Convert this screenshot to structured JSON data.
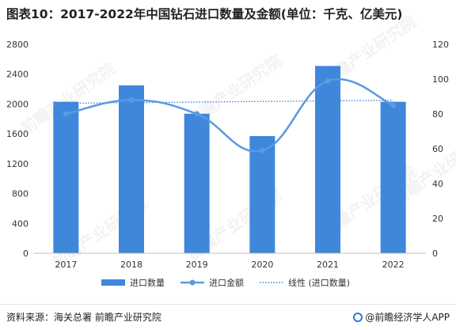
{
  "page": {
    "title": "图表10：2017-2022年中国钻石进口数量及金额(单位：千克、亿美元)",
    "source": "资料来源：海关总署 前瞻产业研究院",
    "brand": "@前瞻经济学人APP",
    "watermark": "前瞻产业研究院"
  },
  "colors": {
    "bar": "#3f87db",
    "line": "#5a9ae0",
    "trend": "#3f87db",
    "axis_text": "#333333"
  },
  "chart_data": {
    "type": "bar",
    "categories": [
      "2017",
      "2018",
      "2019",
      "2020",
      "2021",
      "2022"
    ],
    "series": [
      {
        "name": "进口数量",
        "type": "bar",
        "axis": "left",
        "values": [
          2030,
          2250,
          1870,
          1570,
          2510,
          2030
        ]
      },
      {
        "name": "进口金额",
        "type": "line",
        "axis": "right",
        "values": [
          80,
          88,
          80,
          59,
          99,
          85
        ]
      },
      {
        "name": "线性 (进口数量)",
        "type": "trendline",
        "axis": "left",
        "values": [
          2010,
          2018,
          2026,
          2034,
          2042,
          2050
        ]
      }
    ],
    "y_left": {
      "min": 0,
      "max": 2800,
      "ticks": [
        0,
        400,
        800,
        1200,
        1600,
        2000,
        2400,
        2800
      ]
    },
    "y_right": {
      "min": 0,
      "max": 120,
      "ticks": [
        0,
        20,
        40,
        60,
        80,
        100,
        120
      ]
    },
    "legend_position": "bottom",
    "grid": false
  }
}
